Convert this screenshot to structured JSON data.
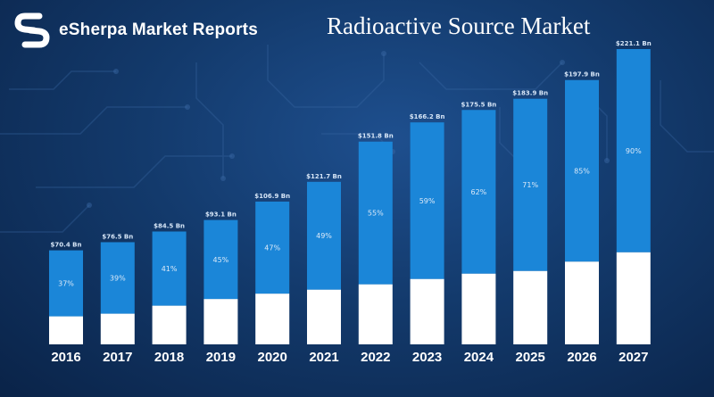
{
  "brand": {
    "name": "eSherpa Market Reports",
    "logo_icon": "esherpa-s-logo-icon"
  },
  "colors": {
    "background": "#133a6c",
    "bar_blue": "#1b86d8",
    "bar_white": "#ffffff",
    "text": "#ffffff"
  },
  "chart_data": {
    "type": "bar",
    "title": "Radioactive Source Market",
    "categories": [
      "2016",
      "2017",
      "2018",
      "2019",
      "2020",
      "2021",
      "2022",
      "2023",
      "2024",
      "2025",
      "2026",
      "2027"
    ],
    "totals": [
      70.4,
      76.5,
      84.5,
      93.1,
      106.9,
      121.7,
      151.8,
      166.2,
      175.5,
      183.9,
      197.9,
      221.1
    ],
    "total_labels": [
      "$70.4 Bn",
      "$76.5 Bn",
      "$84.5 Bn",
      "$93.1 Bn",
      "$106.9 Bn",
      "$121.7 Bn",
      "$151.8 Bn",
      "$166.2 Bn",
      "$175.5 Bn",
      "$183.9 Bn",
      "$197.9 Bn",
      "$221.1 Bn"
    ],
    "percent_labels": [
      "37%",
      "39%",
      "41%",
      "45%",
      "47%",
      "49%",
      "55%",
      "59%",
      "62%",
      "71%",
      "85%",
      "90%"
    ],
    "segments": [
      {
        "values": [
          21,
          23,
          29,
          34,
          38,
          41,
          45,
          49,
          53,
          55,
          62,
          69
        ]
      },
      {
        "values": [
          49.4,
          53.5,
          55.5,
          59.1,
          68.9,
          80.7,
          106.8,
          117.2,
          122.5,
          128.9,
          135.9,
          152.1
        ]
      }
    ],
    "ylim": [
      0,
      225
    ],
    "legend": "none",
    "grid": false
  }
}
